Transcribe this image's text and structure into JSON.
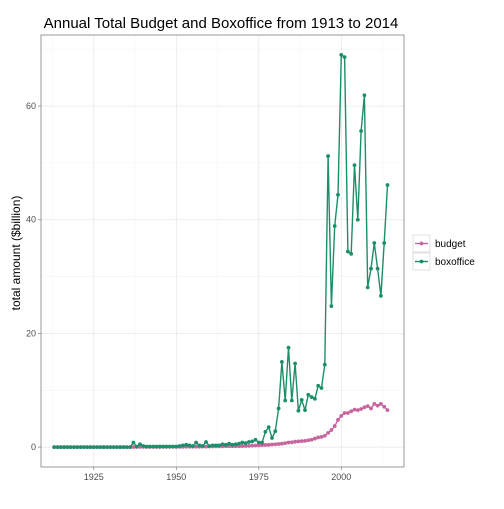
{
  "chart_data": {
    "type": "line",
    "title": "Annual Total Budget and Boxoffice from 1913 to 2014",
    "xlabel": "",
    "ylabel": "total amount ($billion)",
    "xlim": [
      1909,
      2019
    ],
    "ylim": [
      -3.5,
      72.5
    ],
    "x_ticks": [
      1925,
      1950,
      1975,
      2000
    ],
    "y_ticks": [
      0,
      20,
      40,
      60
    ],
    "grid": true,
    "legend_position": "right",
    "x": [
      1913,
      1914,
      1915,
      1916,
      1917,
      1918,
      1919,
      1920,
      1921,
      1922,
      1923,
      1924,
      1925,
      1926,
      1927,
      1928,
      1929,
      1930,
      1931,
      1932,
      1933,
      1934,
      1935,
      1936,
      1937,
      1938,
      1939,
      1940,
      1941,
      1942,
      1943,
      1944,
      1945,
      1946,
      1947,
      1948,
      1949,
      1950,
      1951,
      1952,
      1953,
      1954,
      1955,
      1956,
      1957,
      1958,
      1959,
      1960,
      1961,
      1962,
      1963,
      1964,
      1965,
      1966,
      1967,
      1968,
      1969,
      1970,
      1971,
      1972,
      1973,
      1974,
      1975,
      1976,
      1977,
      1978,
      1979,
      1980,
      1981,
      1982,
      1983,
      1984,
      1985,
      1986,
      1987,
      1988,
      1989,
      1990,
      1991,
      1992,
      1993,
      1994,
      1995,
      1996,
      1997,
      1998,
      1999,
      2000,
      2001,
      2002,
      2003,
      2004,
      2005,
      2006,
      2007,
      2008,
      2009,
      2010,
      2011,
      2012,
      2013,
      2014
    ],
    "series": [
      {
        "name": "budget",
        "color": "#c7659e",
        "values": [
          0,
          0,
          0,
          0,
          0,
          0,
          0,
          0,
          0,
          0,
          0,
          0,
          0,
          0,
          0,
          0,
          0,
          0,
          0,
          0,
          0,
          0,
          0,
          0,
          0.02,
          0.02,
          0.03,
          0.03,
          0.02,
          0.02,
          0.02,
          0.02,
          0.02,
          0.03,
          0.03,
          0.03,
          0.03,
          0.03,
          0.04,
          0.05,
          0.06,
          0.06,
          0.06,
          0.07,
          0.07,
          0.08,
          0.08,
          0.1,
          0.1,
          0.12,
          0.12,
          0.13,
          0.15,
          0.15,
          0.15,
          0.15,
          0.16,
          0.18,
          0.2,
          0.22,
          0.25,
          0.28,
          0.3,
          0.35,
          0.38,
          0.4,
          0.45,
          0.5,
          0.55,
          0.6,
          0.7,
          0.8,
          0.85,
          0.95,
          1.0,
          1.05,
          1.1,
          1.2,
          1.3,
          1.5,
          1.7,
          1.8,
          2.0,
          2.5,
          3.0,
          3.7,
          4.8,
          5.5,
          6.0,
          6.0,
          6.3,
          6.6,
          6.5,
          6.7,
          7.0,
          7.2,
          6.8,
          7.6,
          7.3,
          7.6,
          7.1,
          6.5
        ]
      },
      {
        "name": "boxoffice",
        "color": "#1b8f6a",
        "values": [
          0,
          0,
          0,
          0,
          0,
          0,
          0,
          0,
          0,
          0,
          0,
          0,
          0,
          0,
          0,
          0,
          0,
          0,
          0,
          0,
          0,
          0,
          0,
          0,
          0.8,
          0.1,
          0.5,
          0.2,
          0.1,
          0.1,
          0.1,
          0.1,
          0.1,
          0.1,
          0.1,
          0.1,
          0.1,
          0.1,
          0.2,
          0.3,
          0.4,
          0.3,
          0.2,
          0.8,
          0.3,
          0.2,
          0.9,
          0.2,
          0.3,
          0.3,
          0.3,
          0.5,
          0.4,
          0.6,
          0.4,
          0.5,
          0.6,
          0.8,
          0.7,
          0.9,
          1.0,
          1.3,
          0.8,
          0.8,
          2.7,
          3.5,
          1.6,
          2.8,
          6.8,
          15.0,
          8.2,
          17.5,
          8.2,
          14.7,
          6.4,
          8.3,
          6.5,
          9.2,
          8.8,
          8.5,
          10.8,
          10.4,
          14.5,
          51.2,
          24.8,
          38.9,
          44.4,
          69.0,
          68.6,
          34.4,
          34.0,
          49.6,
          40.0,
          55.6,
          61.9,
          28.1,
          31.4,
          35.9,
          31.4,
          26.6,
          35.9,
          46.1
        ]
      }
    ]
  }
}
